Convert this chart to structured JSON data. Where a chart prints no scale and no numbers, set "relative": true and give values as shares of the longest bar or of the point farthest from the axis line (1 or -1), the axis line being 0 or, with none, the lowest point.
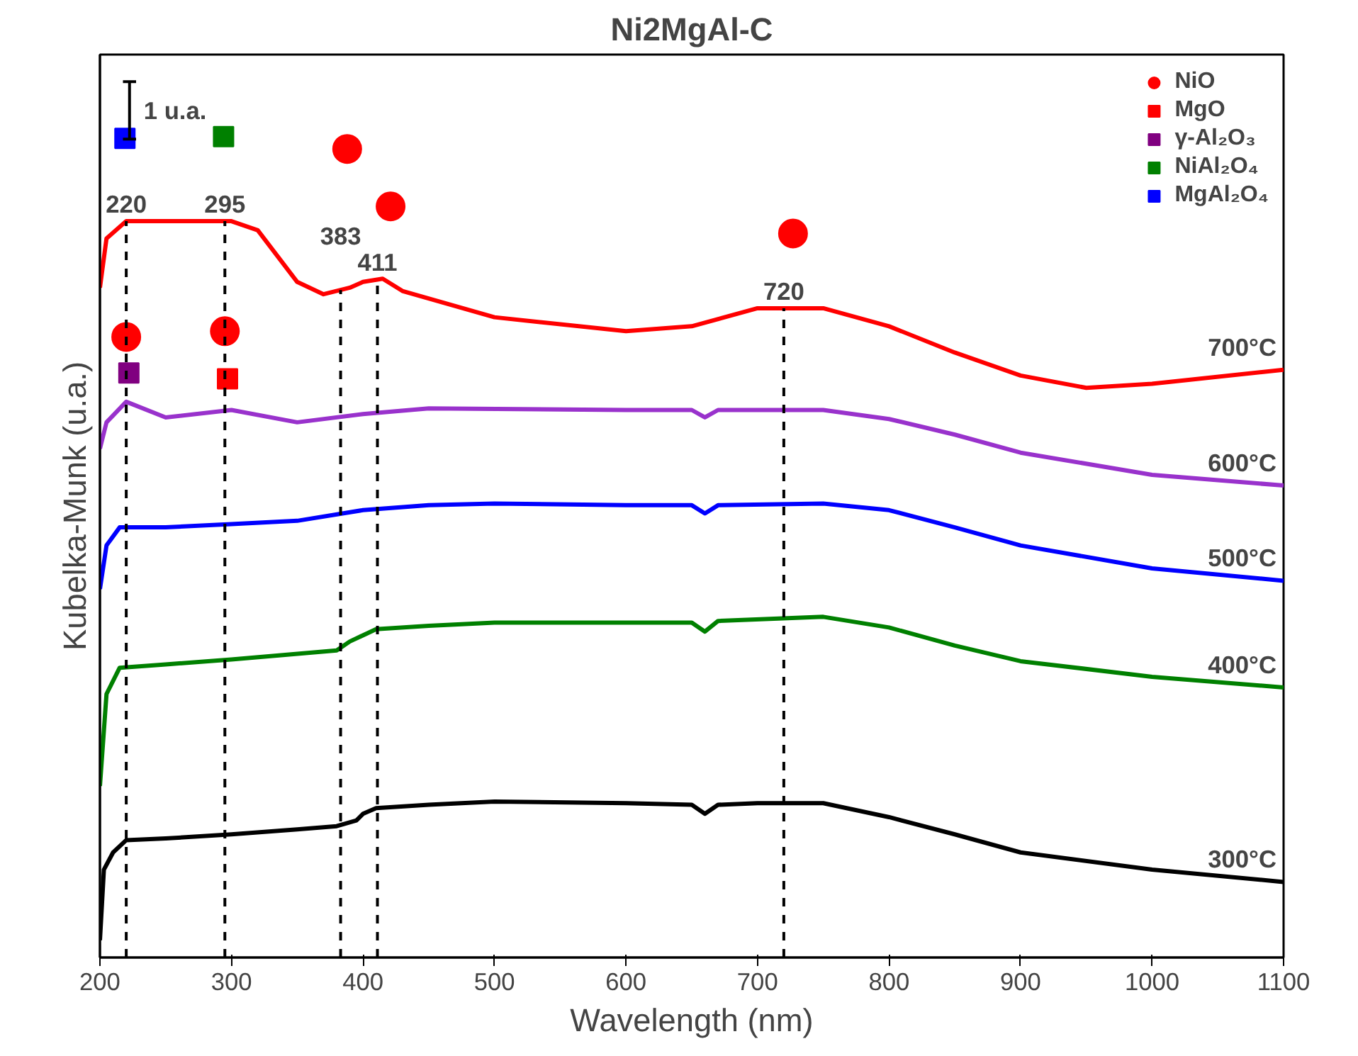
{
  "chart_data": {
    "type": "line",
    "relative": true,
    "title": "Ni2MgAl-C",
    "xlabel": "Wavelength (nm)",
    "ylabel": "Kubelka-Munk (u.a.)",
    "xlim": [
      200,
      1100
    ],
    "xticks": [
      200,
      300,
      400,
      500,
      600,
      700,
      800,
      900,
      1000,
      1100
    ],
    "grid": false,
    "legend": "top right",
    "line_style": "solid",
    "annotations": [
      "1 u.a."
    ],
    "ref_lines": [
      {
        "axis": "x",
        "value": 220,
        "label": "220",
        "color": "#000000",
        "line_style": "dashed"
      },
      {
        "axis": "x",
        "value": 295,
        "label": "295",
        "color": "#000000",
        "line_style": "dashed"
      },
      {
        "axis": "x",
        "value": 383,
        "label": "383",
        "color": "#000000",
        "line_style": "dashed"
      },
      {
        "axis": "x",
        "value": 411,
        "label": "411",
        "color": "#000000",
        "line_style": "dashed"
      },
      {
        "axis": "x",
        "value": 720,
        "label": "720",
        "color": "#000000",
        "line_style": "dashed"
      }
    ],
    "series": [
      {
        "name": "300°C",
        "color": "#000000",
        "x": [
          200,
          203,
          210,
          220,
          250,
          300,
          350,
          380,
          395,
          400,
          410,
          450,
          500,
          600,
          650,
          660,
          670,
          700,
          750,
          800,
          850,
          900,
          1000,
          1100
        ],
        "values": [
          0.021,
          0.107,
          0.128,
          0.143,
          0.145,
          0.15,
          0.156,
          0.16,
          0.167,
          0.175,
          0.182,
          0.186,
          0.19,
          0.188,
          0.186,
          0.175,
          0.186,
          0.188,
          0.188,
          0.171,
          0.15,
          0.128,
          0.107,
          0.092
        ]
      },
      {
        "name": "400°C",
        "color": "#008000",
        "x": [
          200,
          205,
          215,
          250,
          300,
          380,
          390,
          410,
          450,
          500,
          600,
          650,
          660,
          670,
          750,
          800,
          850,
          900,
          1000,
          1100
        ],
        "values": [
          0.209,
          0.321,
          0.353,
          0.357,
          0.363,
          0.374,
          0.385,
          0.4,
          0.404,
          0.408,
          0.408,
          0.408,
          0.397,
          0.41,
          0.415,
          0.402,
          0.38,
          0.361,
          0.342,
          0.329
        ]
      },
      {
        "name": "500°C",
        "color": "#0000ff",
        "x": [
          200,
          205,
          215,
          250,
          300,
          350,
          400,
          450,
          500,
          600,
          650,
          660,
          670,
          750,
          800,
          850,
          900,
          1000,
          1100
        ],
        "values": [
          0.449,
          0.502,
          0.524,
          0.524,
          0.528,
          0.532,
          0.545,
          0.551,
          0.553,
          0.551,
          0.551,
          0.541,
          0.551,
          0.553,
          0.545,
          0.524,
          0.502,
          0.474,
          0.459
        ]
      },
      {
        "name": "600°C",
        "color": "#9932cc",
        "x": [
          200,
          205,
          220,
          250,
          300,
          350,
          400,
          450,
          600,
          650,
          660,
          670,
          750,
          800,
          850,
          900,
          1000,
          1100
        ],
        "values": [
          0.62,
          0.652,
          0.677,
          0.658,
          0.667,
          0.652,
          0.662,
          0.669,
          0.667,
          0.667,
          0.658,
          0.667,
          0.667,
          0.656,
          0.637,
          0.615,
          0.588,
          0.575
        ]
      },
      {
        "name": "700°C",
        "color": "#ff0000",
        "x": [
          200,
          205,
          220,
          250,
          300,
          320,
          350,
          370,
          390,
          400,
          415,
          430,
          500,
          600,
          650,
          700,
          750,
          800,
          850,
          900,
          950,
          1000,
          1100
        ],
        "values": [
          0.816,
          0.876,
          0.897,
          0.897,
          0.897,
          0.886,
          0.823,
          0.808,
          0.816,
          0.823,
          0.827,
          0.812,
          0.78,
          0.763,
          0.769,
          0.791,
          0.791,
          0.769,
          0.737,
          0.709,
          0.694,
          0.699,
          0.716
        ]
      },
      {
        "name": "NiO",
        "type": "scatter",
        "marker": "circle",
        "color": "#ff0000",
        "x": [
          220,
          295,
          388,
          421,
          727
        ],
        "values": [
          0.756,
          0.763,
          0.985,
          0.915,
          0.882
        ]
      },
      {
        "name": "MgO",
        "type": "scatter",
        "marker": "square",
        "color": "#ff0000",
        "x": [
          297
        ],
        "values": [
          0.705
        ]
      },
      {
        "name": "γ-Al₂O₃",
        "type": "scatter",
        "marker": "square",
        "color": "#800080",
        "x": [
          222
        ],
        "values": [
          0.712
        ]
      },
      {
        "name": "NiAl₂O₄",
        "type": "scatter",
        "marker": "square",
        "color": "#008000",
        "x": [
          294
        ],
        "values": [
          1.0
        ]
      },
      {
        "name": "MgAl₂O₄",
        "type": "scatter",
        "marker": "square",
        "color": "#0000ff",
        "x": [
          219
        ],
        "values": [
          0.998
        ]
      }
    ]
  }
}
